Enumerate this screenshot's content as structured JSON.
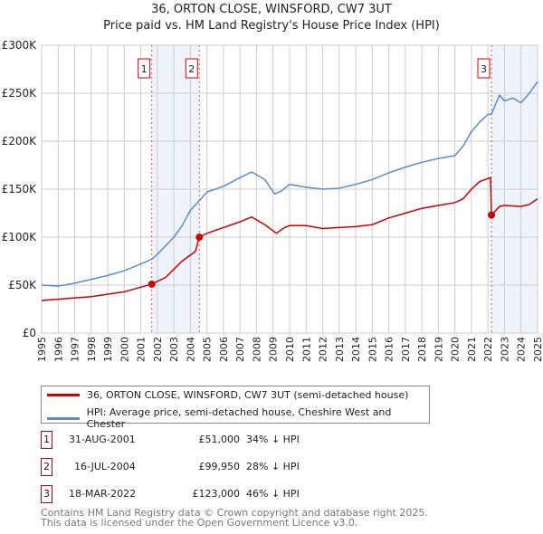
{
  "header": {
    "title": "36, ORTON CLOSE, WINSFORD, CW7 3UT",
    "subtitle": "Price paid vs. HM Land Registry's House Price Index (HPI)"
  },
  "chart_data": {
    "type": "line",
    "title": "36, ORTON CLOSE, WINSFORD, CW7 3UT",
    "subtitle": "Price paid vs. HM Land Registry's House Price Index (HPI)",
    "xlim": [
      1995,
      2025
    ],
    "ylim": [
      0,
      300000
    ],
    "x_ticks": [
      "1995",
      "1996",
      "1997",
      "1998",
      "1999",
      "2000",
      "2001",
      "2002",
      "2003",
      "2004",
      "2005",
      "2006",
      "2007",
      "2008",
      "2009",
      "2010",
      "2011",
      "2012",
      "2013",
      "2014",
      "2015",
      "2016",
      "2017",
      "2018",
      "2019",
      "2020",
      "2021",
      "2022",
      "2023",
      "2024",
      "2025"
    ],
    "y_ticks": [
      {
        "v": 0,
        "label": "£0"
      },
      {
        "v": 50000,
        "label": "£50K"
      },
      {
        "v": 100000,
        "label": "£100K"
      },
      {
        "v": 150000,
        "label": "£150K"
      },
      {
        "v": 200000,
        "label": "£200K"
      },
      {
        "v": 250000,
        "label": "£250K"
      },
      {
        "v": 300000,
        "label": "£300K"
      }
    ],
    "grid": true,
    "series": [
      {
        "name": "36, ORTON CLOSE, WINSFORD, CW7 3UT (semi-detached house)",
        "color": "#cc0000",
        "x": [
          1995,
          1998,
          2000,
          2001.66,
          2002.5,
          2003.5,
          2004.3,
          2004.54,
          2005,
          2006,
          2007,
          2007.7,
          2008.5,
          2009.2,
          2009.7,
          2010,
          2011,
          2012,
          2013,
          2014,
          2015,
          2016,
          2017,
          2018,
          2019,
          2020,
          2020.5,
          2021,
          2021.5,
          2022.15,
          2022.21,
          2022.7,
          2023,
          2024,
          2024.5,
          2025
        ],
        "y": [
          34000,
          38000,
          43000,
          51000,
          58000,
          75000,
          85000,
          99950,
          104000,
          110000,
          116000,
          121000,
          113000,
          104000,
          110000,
          112000,
          112000,
          109000,
          110000,
          111000,
          113000,
          120000,
          125000,
          130000,
          133000,
          136000,
          140000,
          150000,
          158000,
          162000,
          123000,
          132000,
          133000,
          132000,
          134000,
          140000
        ]
      },
      {
        "name": "HPI: Average price, semi-detached house, Cheshire West and Chester",
        "color": "#5b8bd0",
        "x": [
          1995,
          1996,
          1997,
          1998,
          1999,
          2000,
          2001,
          2001.66,
          2002,
          2003,
          2003.5,
          2004,
          2004.54,
          2005,
          2006,
          2007,
          2007.7,
          2008.5,
          2009.1,
          2009.5,
          2010,
          2011,
          2012,
          2013,
          2014,
          2015,
          2016,
          2017,
          2018,
          2019,
          2020,
          2020.5,
          2021,
          2021.5,
          2022,
          2022.2,
          2022.7,
          2023,
          2023.5,
          2024,
          2024.5,
          2025
        ],
        "y": [
          50000,
          49000,
          52000,
          56000,
          60000,
          65000,
          72000,
          77000,
          82000,
          100000,
          112000,
          128000,
          138000,
          147000,
          153000,
          162000,
          168000,
          160000,
          145000,
          148000,
          155000,
          152000,
          150000,
          151000,
          155000,
          160000,
          167000,
          173000,
          178000,
          182000,
          185000,
          195000,
          210000,
          220000,
          228000,
          228000,
          248000,
          242000,
          245000,
          240000,
          250000,
          262000
        ]
      }
    ],
    "sales": [
      {
        "label": "1",
        "x": 2001.66,
        "price": 51000,
        "date": "31-AUG-2001",
        "price_text": "£51,000",
        "hpi": "34% ↓ HPI"
      },
      {
        "label": "2",
        "x": 2004.54,
        "price": 99950,
        "date": "16-JUL-2004",
        "price_text": "£99,950",
        "hpi": "28% ↓ HPI"
      },
      {
        "label": "3",
        "x": 2022.21,
        "price": 123000,
        "date": "18-MAR-2022",
        "price_text": "£123,000",
        "hpi": "46% ↓ HPI"
      }
    ]
  },
  "legend": {
    "items": [
      "36, ORTON CLOSE, WINSFORD, CW7 3UT (semi-detached house)",
      "HPI: Average price, semi-detached house, Cheshire West and Chester"
    ]
  },
  "footer": {
    "line1": "Contains HM Land Registry data © Crown copyright and database right 2025.",
    "line2": "This data is licensed under the Open Government Licence v3.0."
  }
}
